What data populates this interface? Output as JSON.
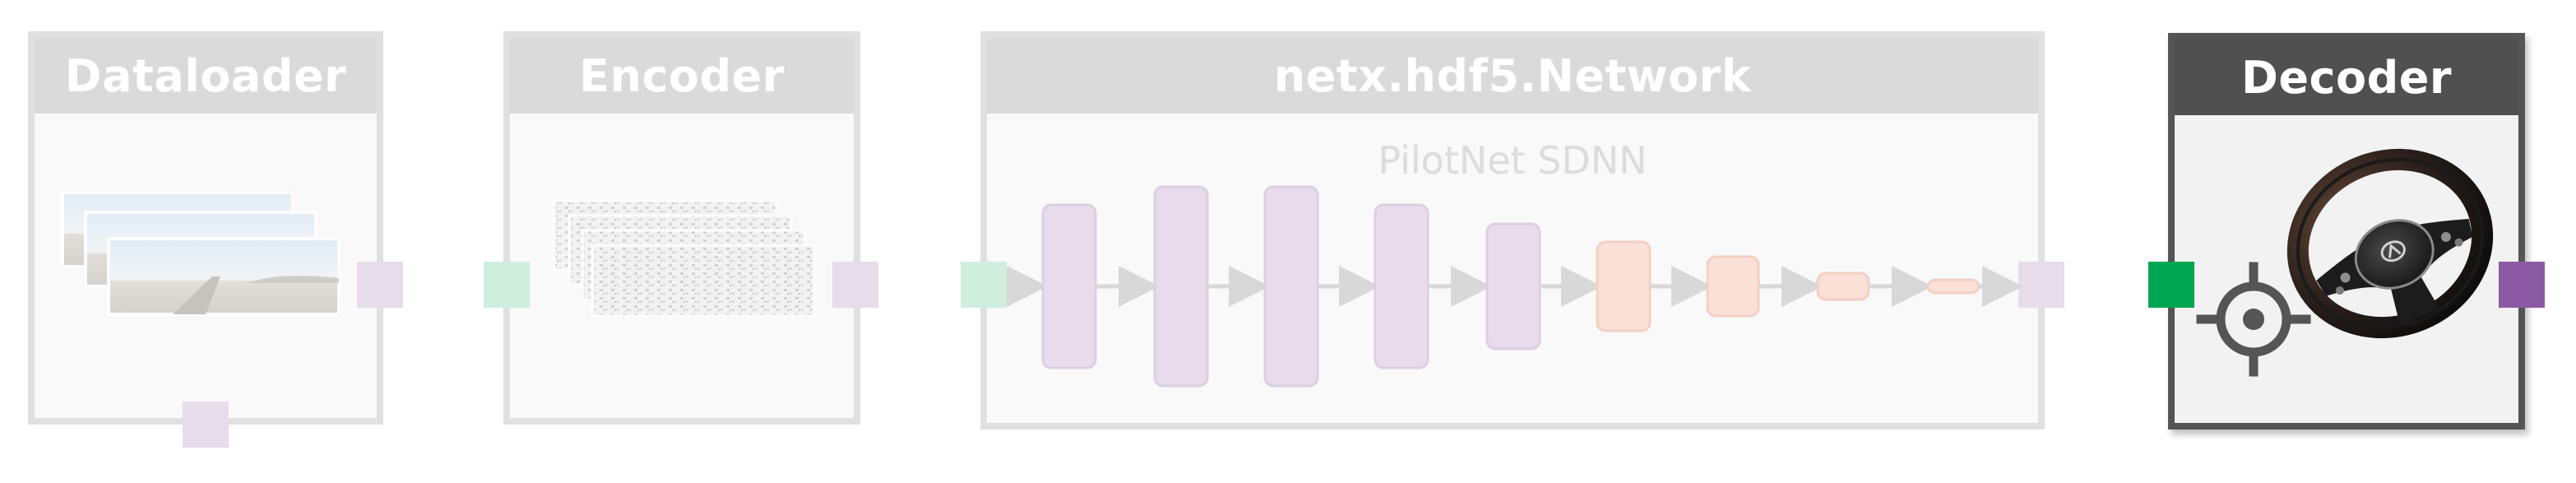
{
  "blocks": {
    "dataloader": {
      "title": "Dataloader"
    },
    "encoder": {
      "title": "Encoder"
    },
    "network": {
      "title": "netx.hdf5.Network",
      "subtitle": "PilotNet SDNN"
    },
    "decoder": {
      "title": "Decoder"
    }
  },
  "icons": {
    "road_images": "road-image-stack-icon",
    "encoded_frames": "encoded-frame-stack-icon",
    "gear": "gear-icon",
    "steering_wheel": "steering-wheel-icon"
  },
  "colors": {
    "input_port": "#00a651",
    "output_port": "#8c5aa5",
    "faded_input_port": "#cfeedd",
    "faded_output_port": "#e6dcea",
    "conv_layer": "#e8dcec",
    "dense_layer": "#fbe0d8"
  },
  "network_layers": [
    {
      "kind": "conv"
    },
    {
      "kind": "conv"
    },
    {
      "kind": "conv"
    },
    {
      "kind": "conv"
    },
    {
      "kind": "conv"
    },
    {
      "kind": "dense"
    },
    {
      "kind": "dense"
    },
    {
      "kind": "dense"
    },
    {
      "kind": "dense"
    }
  ]
}
